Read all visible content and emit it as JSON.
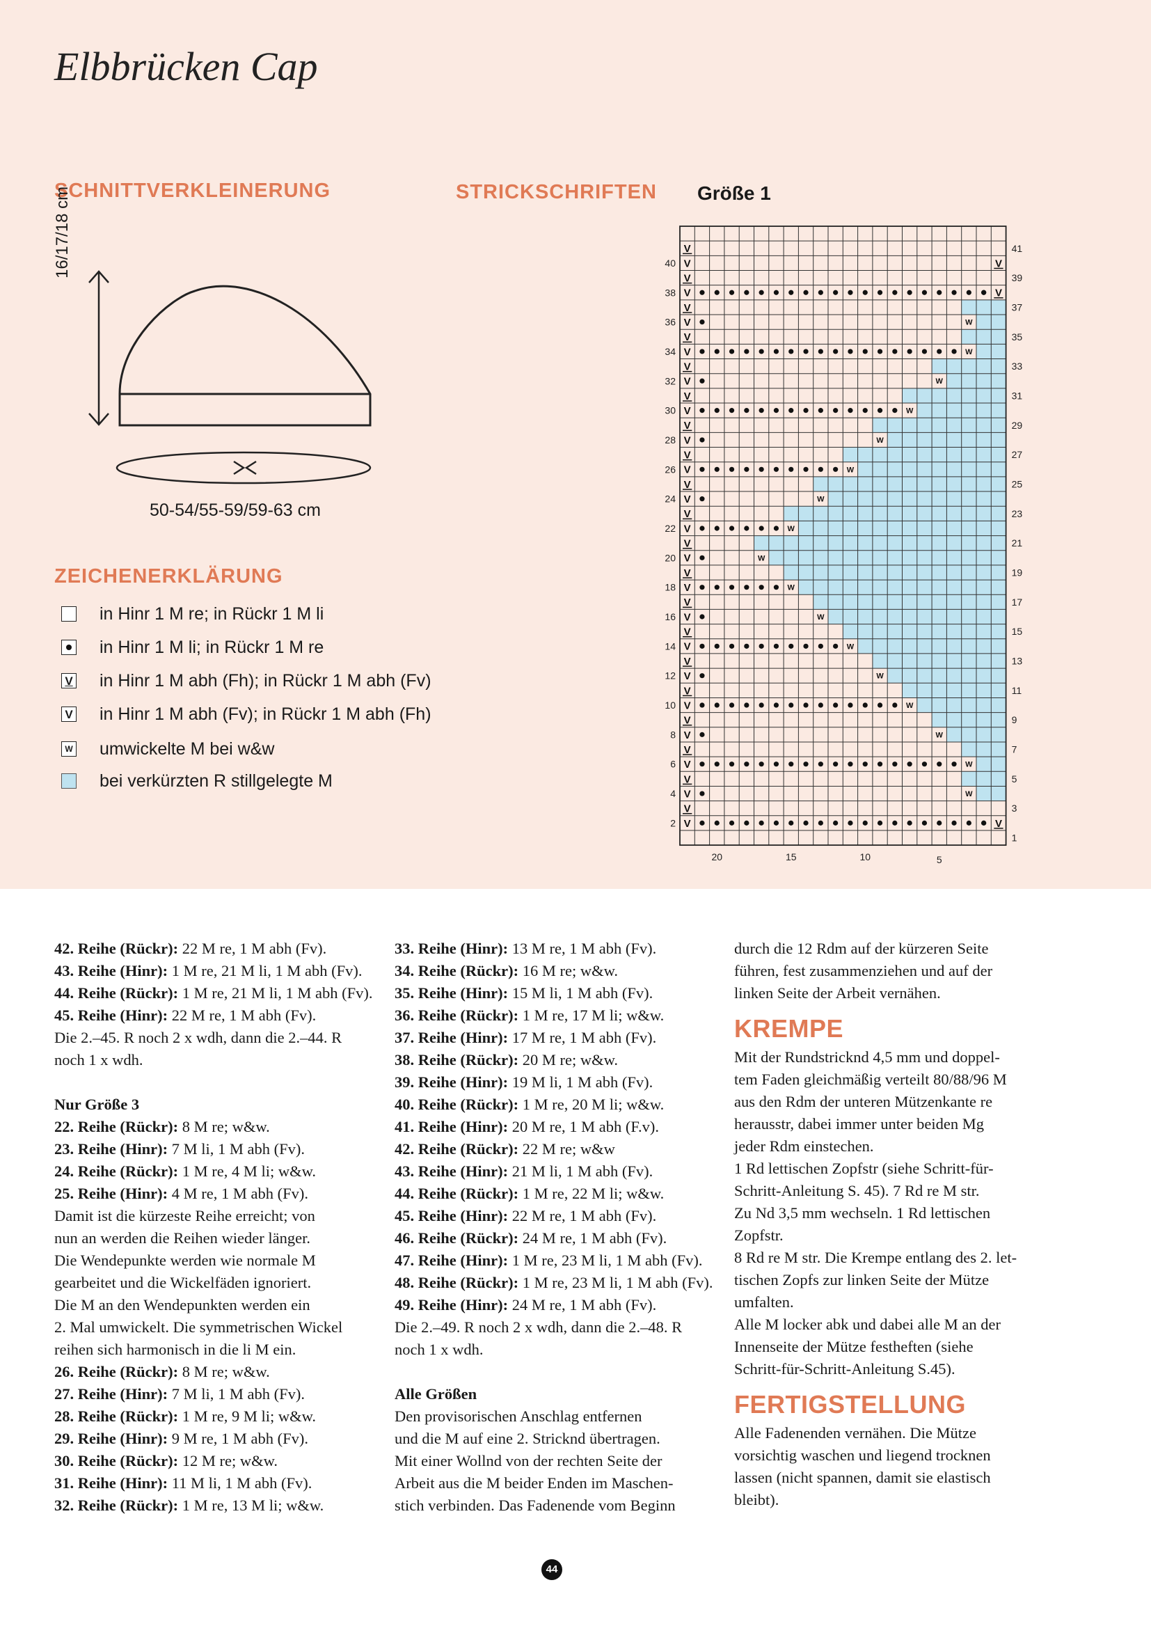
{
  "title": "Elbbrücken Cap",
  "sections": {
    "schnitt": "SCHNITTVERKLEINERUNG",
    "strickschriften": "STRICKSCHRIFTEN",
    "zeichen": "ZEICHENERKLÄRUNG"
  },
  "size_label": "Größe 1",
  "schematic": {
    "height": "16/17/18 cm",
    "circumference": "50-54/55-59/59-63 cm"
  },
  "legend": [
    {
      "icon": "empty-square-icon",
      "text": "in Hinr 1 M re; in Rückr 1 M li"
    },
    {
      "icon": "dot-square-icon",
      "text": "in Hinr 1 M li; in Rückr 1 M re"
    },
    {
      "icon": "v-underline-square-icon",
      "text": "in Hinr 1 M abh (Fh); in Rückr 1 M abh (Fv)"
    },
    {
      "icon": "v-square-icon",
      "text": "in Hinr 1 M abh (Fv); in Rückr 1 M abh (Fh)"
    },
    {
      "icon": "w-square-icon",
      "text": "umwickelte M bei w&w"
    },
    {
      "icon": "blue-square-icon",
      "text": "bei verkürzten R stillgelegte M"
    }
  ],
  "chart_data": {
    "type": "table",
    "title": "Größe 1",
    "columns": 22,
    "rows": 42,
    "x_tick_labels": [
      "20",
      "15",
      "10",
      "5"
    ],
    "left_row_labels": [
      "2",
      "4",
      "6",
      "8",
      "10",
      "12",
      "14",
      "16",
      "18",
      "20",
      "22",
      "24",
      "26",
      "28",
      "30",
      "32",
      "34",
      "36",
      "38",
      "40"
    ],
    "right_row_labels": [
      "1",
      "3",
      "5",
      "7",
      "9",
      "11",
      "13",
      "15",
      "17",
      "19",
      "21",
      "23",
      "25",
      "27",
      "29",
      "31",
      "33",
      "35",
      "37",
      "39",
      "41"
    ],
    "purl_rows_dots": [
      {
        "row": 2,
        "dots": 20,
        "w": false,
        "end_v": true
      },
      {
        "row": 6,
        "dots": 18,
        "w": true
      },
      {
        "row": 10,
        "dots": 14,
        "w": true
      },
      {
        "row": 14,
        "dots": 10,
        "w": true
      },
      {
        "row": 18,
        "dots": 6,
        "w": true
      },
      {
        "row": 22,
        "dots": 6,
        "w": true
      },
      {
        "row": 26,
        "dots": 10,
        "w": true
      },
      {
        "row": 30,
        "dots": 14,
        "w": true
      },
      {
        "row": 34,
        "dots": 18,
        "w": true
      },
      {
        "row": 38,
        "dots": 20,
        "w": false,
        "end_v": true
      }
    ],
    "wrap_rows_plain": [
      {
        "row": 4,
        "w_col": 20
      },
      {
        "row": 8,
        "w_col": 18
      },
      {
        "row": 12,
        "w_col": 14
      },
      {
        "row": 16,
        "w_col": 10
      },
      {
        "row": 20,
        "w_col": 6
      },
      {
        "row": 24,
        "w_col": 10
      },
      {
        "row": 28,
        "w_col": 14
      },
      {
        "row": 32,
        "w_col": 18
      },
      {
        "row": 36,
        "w_col": 20
      }
    ]
  },
  "col1": [
    {
      "b": "42. Reihe (Rückr):",
      "t": " 22 M re, 1 M abh (Fv)."
    },
    {
      "b": "43. Reihe (Hinr):",
      "t": " 1 M re, 21 M li, 1 M abh (Fv)."
    },
    {
      "b": "44. Reihe (Rückr):",
      "t": " 1 M re, 21 M li, 1 M abh (Fv)."
    },
    {
      "b": "45. Reihe (Hinr):",
      "t": " 22 M re, 1 M abh (Fv)."
    },
    {
      "b": "",
      "t": "Die 2.–45. R noch 2 x wdh, dann die 2.–44. R"
    },
    {
      "b": "",
      "t": "noch 1 x wdh."
    },
    {
      "gap": true
    },
    {
      "b": "Nur Größe 3",
      "t": ""
    },
    {
      "b": "22. Reihe (Rückr):",
      "t": " 8 M re; w&w."
    },
    {
      "b": "23. Reihe (Hinr):",
      "t": " 7 M li, 1 M abh (Fv)."
    },
    {
      "b": "24. Reihe (Rückr):",
      "t": " 1 M re, 4 M li; w&w."
    },
    {
      "b": "25. Reihe (Hinr):",
      "t": " 4 M re, 1 M abh (Fv)."
    },
    {
      "b": "",
      "t": "Damit ist die kürzeste Reihe erreicht; von"
    },
    {
      "b": "",
      "t": "nun an werden die Reihen wieder länger."
    },
    {
      "b": "",
      "t": "Die Wendepunkte werden wie normale M"
    },
    {
      "b": "",
      "t": "gearbeitet und die Wickelfäden ignoriert."
    },
    {
      "b": "",
      "t": "Die M an den Wendepunkten werden ein"
    },
    {
      "b": "",
      "t": "2. Mal umwickelt. Die symmetrischen Wickel"
    },
    {
      "b": "",
      "t": "reihen sich harmonisch in die li M ein."
    },
    {
      "b": "26. Reihe (Rückr):",
      "t": " 8 M re; w&w."
    },
    {
      "b": "27. Reihe (Hinr):",
      "t": " 7 M li, 1 M abh (Fv)."
    },
    {
      "b": "28. Reihe (Rückr):",
      "t": " 1 M re, 9 M li; w&w."
    },
    {
      "b": "29. Reihe (Hinr):",
      "t": " 9 M re, 1 M abh (Fv)."
    },
    {
      "b": "30. Reihe (Rückr):",
      "t": " 12 M re; w&w."
    },
    {
      "b": "31. Reihe (Hinr):",
      "t": " 11 M li, 1 M abh (Fv)."
    },
    {
      "b": "32. Reihe (Rückr):",
      "t": " 1 M re, 13 M li; w&w."
    }
  ],
  "col2": [
    {
      "b": "33. Reihe (Hinr):",
      "t": " 13 M re, 1 M abh (Fv)."
    },
    {
      "b": "34. Reihe (Rückr):",
      "t": " 16 M re; w&w."
    },
    {
      "b": "35. Reihe (Hinr):",
      "t": " 15 M li, 1 M abh (Fv)."
    },
    {
      "b": "36. Reihe (Rückr):",
      "t": " 1 M re, 17 M li; w&w."
    },
    {
      "b": "37. Reihe (Hinr):",
      "t": " 17 M re, 1 M abh (Fv)."
    },
    {
      "b": "38. Reihe (Rückr):",
      "t": " 20 M re; w&w."
    },
    {
      "b": "39. Reihe (Hinr):",
      "t": " 19 M li, 1 M abh (Fv)."
    },
    {
      "b": "40. Reihe (Rückr):",
      "t": " 1 M re, 20 M li; w&w."
    },
    {
      "b": "41. Reihe (Hinr):",
      "t": " 20 M re, 1 M abh (F.v)."
    },
    {
      "b": "42. Reihe (Rückr):",
      "t": " 22 M re; w&w"
    },
    {
      "b": "43. Reihe (Hinr):",
      "t": " 21 M li, 1 M abh (Fv)."
    },
    {
      "b": "44. Reihe (Rückr):",
      "t": " 1 M re, 22 M li; w&w."
    },
    {
      "b": "45. Reihe (Hinr):",
      "t": " 22 M re, 1 M abh (Fv)."
    },
    {
      "b": "46. Reihe (Rückr):",
      "t": " 24 M re, 1 M abh (Fv)."
    },
    {
      "b": "47. Reihe (Hinr):",
      "t": " 1 M re, 23 M li, 1 M abh (Fv)."
    },
    {
      "b": "48. Reihe (Rückr):",
      "t": " 1 M re, 23 M li, 1 M abh (Fv)."
    },
    {
      "b": "49. Reihe (Hinr):",
      "t": " 24 M re, 1 M abh (Fv)."
    },
    {
      "b": "",
      "t": "Die 2.–49. R noch 2 x wdh, dann die 2.–48. R"
    },
    {
      "b": "",
      "t": "noch 1 x wdh."
    },
    {
      "gap": true
    },
    {
      "b": "Alle Größen",
      "t": ""
    },
    {
      "b": "",
      "t": "Den provisorischen Anschlag entfernen"
    },
    {
      "b": "",
      "t": "und die M auf eine 2. Stricknd übertragen."
    },
    {
      "b": "",
      "t": "Mit einer Wollnd von der rechten Seite der"
    },
    {
      "b": "",
      "t": "Arbeit aus die M beider Enden im Maschen-"
    },
    {
      "b": "",
      "t": "stich verbinden. Das Fadenende vom Beginn"
    }
  ],
  "col3": [
    {
      "b": "",
      "t": "durch die 12 Rdm auf der kürzeren Seite"
    },
    {
      "b": "",
      "t": "führen, fest zusammenziehen und auf der"
    },
    {
      "b": "",
      "t": "linken Seite der Arbeit vernähen."
    },
    {
      "h": "KREMPE"
    },
    {
      "b": "",
      "t": "Mit der Rundstricknd 4,5 mm und doppel-"
    },
    {
      "b": "",
      "t": "tem Faden gleichmäßig verteilt 80/88/96 M"
    },
    {
      "b": "",
      "t": "aus den Rdm der unteren Mützenkante re"
    },
    {
      "b": "",
      "t": "herausstr, dabei immer unter beiden Mg"
    },
    {
      "b": "",
      "t": "jeder Rdm einstechen."
    },
    {
      "b": "",
      "t": "1 Rd lettischen Zopfstr (siehe Schritt-für-"
    },
    {
      "b": "",
      "t": "Schritt-Anleitung S. 45). 7 Rd re M str."
    },
    {
      "b": "",
      "t": "Zu Nd 3,5 mm wechseln. 1 Rd lettischen"
    },
    {
      "b": "",
      "t": "Zopfstr."
    },
    {
      "b": "",
      "t": "8 Rd re M str. Die Krempe entlang des 2. let-"
    },
    {
      "b": "",
      "t": "tischen Zopfs zur linken Seite der Mütze"
    },
    {
      "b": "",
      "t": "umfalten."
    },
    {
      "b": "",
      "t": "Alle M locker abk und dabei alle M an der"
    },
    {
      "b": "",
      "t": "Innenseite der Mütze festheften (siehe"
    },
    {
      "b": "",
      "t": "Schritt-für-Schritt-Anleitung S.45)."
    },
    {
      "h": "FERTIGSTELLUNG"
    },
    {
      "b": "",
      "t": "Alle Fadenenden vernähen. Die Mütze"
    },
    {
      "b": "",
      "t": "vorsichtig waschen und liegend trocknen"
    },
    {
      "b": "",
      "t": "lassen (nicht spannen, damit sie elastisch"
    },
    {
      "b": "",
      "t": "bleibt)."
    }
  ],
  "page_number": "44",
  "colors": {
    "accent": "#e07a55",
    "top_bg": "#fbeae2",
    "stillgelegt": "#bfe3f0"
  }
}
